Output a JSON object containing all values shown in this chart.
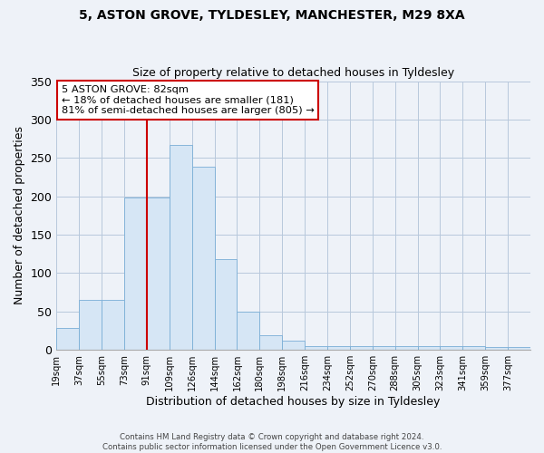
{
  "title": "5, ASTON GROVE, TYLDESLEY, MANCHESTER, M29 8XA",
  "subtitle": "Size of property relative to detached houses in Tyldesley",
  "xlabel": "Distribution of detached houses by size in Tyldesley",
  "ylabel": "Number of detached properties",
  "bar_labels": [
    "19sqm",
    "37sqm",
    "55sqm",
    "73sqm",
    "91sqm",
    "109sqm",
    "126sqm",
    "144sqm",
    "162sqm",
    "180sqm",
    "198sqm",
    "216sqm",
    "234sqm",
    "252sqm",
    "270sqm",
    "288sqm",
    "305sqm",
    "323sqm",
    "341sqm",
    "359sqm",
    "377sqm"
  ],
  "bar_heights": [
    28,
    65,
    65,
    198,
    198,
    267,
    239,
    118,
    50,
    19,
    12,
    5,
    5,
    5,
    5,
    5,
    5,
    5,
    5,
    4,
    4
  ],
  "bar_color": "#d6e6f5",
  "bar_edgecolor": "#7aaed6",
  "vline_x": 4,
  "vline_color": "#cc0000",
  "annotation_title": "5 ASTON GROVE: 82sqm",
  "annotation_line1": "← 18% of detached houses are smaller (181)",
  "annotation_line2": "81% of semi-detached houses are larger (805) →",
  "box_edgecolor": "#cc0000",
  "ylim": [
    0,
    350
  ],
  "yticks": [
    0,
    50,
    100,
    150,
    200,
    250,
    300,
    350
  ],
  "footer1": "Contains HM Land Registry data © Crown copyright and database right 2024.",
  "footer2": "Contains public sector information licensed under the Open Government Licence v3.0.",
  "bg_color": "#eef2f8",
  "plot_bg_color": "#eef2f8"
}
